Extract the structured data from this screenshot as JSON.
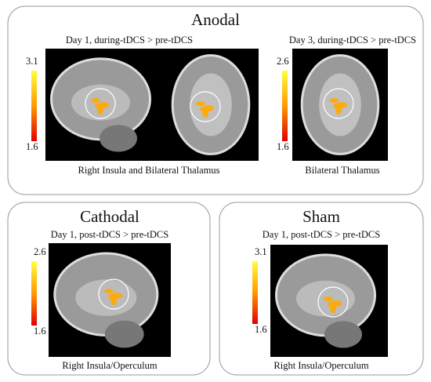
{
  "panels": [
    {
      "title": "Anodal",
      "subpanels": [
        {
          "subtitle": "Day 1, during-tDCS  > pre-tDCS",
          "colorbar": {
            "max": 3.1,
            "min": 1.6
          },
          "caption": "Right Insula and Bilateral Thalamus"
        },
        {
          "subtitle": "Day 3, during-tDCS  > pre-tDCS",
          "colorbar": {
            "max": 2.6,
            "min": 1.6
          },
          "caption": "Bilateral Thalamus"
        }
      ]
    },
    {
      "title": "Cathodal",
      "subpanels": [
        {
          "subtitle": "Day 1, post-tDCS  > pre-tDCS",
          "colorbar": {
            "max": 2.6,
            "min": 1.6
          },
          "caption": "Right Insula/Operculum"
        }
      ]
    },
    {
      "title": "Sham",
      "subpanels": [
        {
          "subtitle": "Day 1, post-tDCS  > pre-tDCS",
          "colorbar": {
            "max": 3.1,
            "min": 1.6
          },
          "caption": "Right Insula/Operculum"
        }
      ]
    }
  ]
}
